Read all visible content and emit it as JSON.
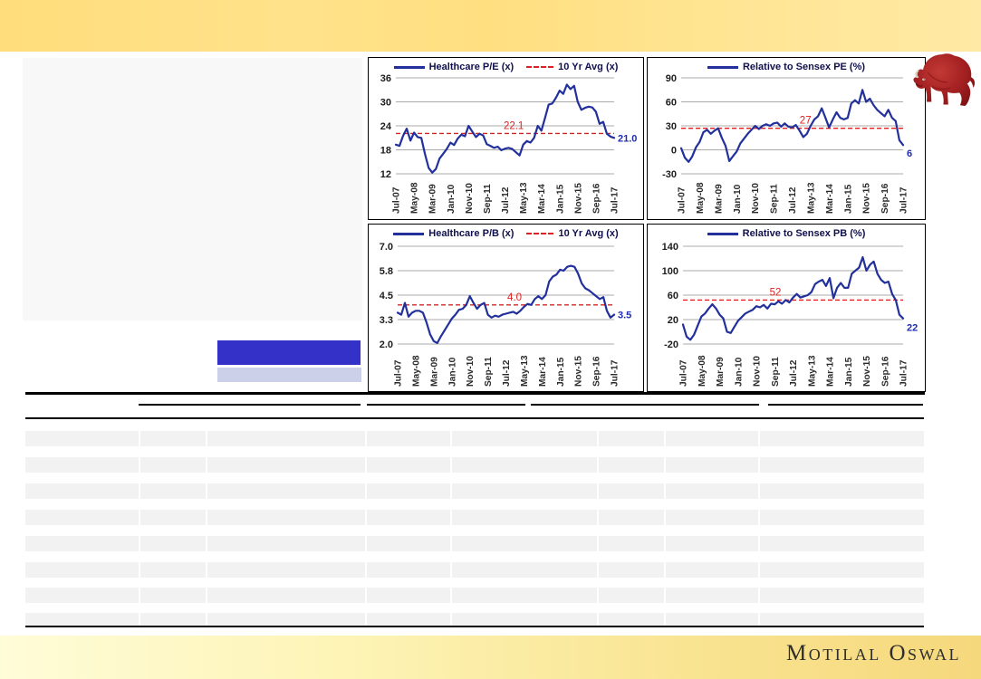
{
  "footer": {
    "brand": "Motilal Oswal"
  },
  "logo": {
    "name": "motilal-oswal-bull-logo",
    "color": "#9c1a1c"
  },
  "colors": {
    "series_line": "#22309c",
    "avg_line": "#e02020",
    "grid": "#ababab",
    "tick_text": "#1c1c1c",
    "end_label": "#1f2db4",
    "legend_text": "#10104e",
    "top_band": [
      "#ffdd7c",
      "#ffe9a4"
    ],
    "footer_band": [
      "#fffcd8",
      "#f6d87c"
    ],
    "blue_bar": "#3431c8",
    "lavender_bar": "#ccd0e9",
    "row_stripe": "#f2f2f2",
    "left_panel": "#f8f8f8"
  },
  "table": {
    "rows": 8,
    "columns": 8,
    "cell_text": ""
  },
  "chart_data": [
    {
      "type": "line",
      "title": "Healthcare P/E (x)",
      "legend": [
        {
          "label": "Healthcare P/E (x)",
          "style": "solid"
        },
        {
          "label": "10 Yr Avg (x)",
          "style": "dashed"
        }
      ],
      "ylim": [
        12,
        36
      ],
      "yticks": [
        "36",
        "30",
        "24",
        "18",
        "12"
      ],
      "xticklabels": [
        "Jul-07",
        "May-08",
        "Mar-09",
        "Jan-10",
        "Nov-10",
        "Sep-11",
        "Jul-12",
        "May-13",
        "Mar-14",
        "Jan-15",
        "Nov-15",
        "Sep-16",
        "Jul-17"
      ],
      "avg_value": 22.1,
      "avg_label": "22.1",
      "last_label": "21.0",
      "values": [
        19.3,
        19.0,
        21.5,
        23.3,
        20.3,
        22.3,
        21.2,
        21.0,
        17.0,
        13.5,
        12.3,
        13.2,
        15.8,
        17.0,
        18.2,
        19.8,
        19.2,
        20.8,
        21.8,
        21.4,
        24.0,
        22.6,
        21.2,
        22.0,
        21.6,
        19.4,
        19.0,
        18.5,
        18.8,
        17.9,
        18.3,
        18.5,
        18.2,
        17.4,
        16.6,
        19.3,
        20.2,
        19.8,
        21.0,
        24.0,
        22.8,
        26.0,
        29.3,
        29.6,
        31.0,
        32.8,
        32.0,
        34.3,
        33.2,
        34.0,
        30.0,
        28.0,
        28.5,
        28.8,
        28.6,
        27.5,
        24.5,
        25.0,
        22.0,
        21.3,
        21.0
      ]
    },
    {
      "type": "line",
      "title": "Relative to Sensex PE (%)",
      "legend": [
        {
          "label": "Relative to Sensex PE (%)",
          "style": "solid"
        }
      ],
      "ylim": [
        -30,
        90
      ],
      "yticks": [
        "90",
        "60",
        "30",
        "0",
        "-30"
      ],
      "xticklabels": [
        "Jul-07",
        "May-08",
        "Mar-09",
        "Jan-10",
        "Nov-10",
        "Sep-11",
        "Jul-12",
        "May-13",
        "Mar-14",
        "Jan-15",
        "Nov-15",
        "Sep-16",
        "Jul-17"
      ],
      "avg_value": 27,
      "avg_label": "27",
      "last_label": "6",
      "values": [
        2,
        -10,
        -15,
        -8,
        3,
        10,
        22,
        25,
        20,
        24,
        27,
        15,
        5,
        -14,
        -8,
        -2,
        8,
        14,
        20,
        25,
        30,
        26,
        30,
        32,
        30,
        33,
        34,
        29,
        33,
        29,
        28,
        31,
        24,
        16,
        20,
        30,
        38,
        42,
        52,
        40,
        28,
        38,
        47,
        40,
        38,
        40,
        58,
        62,
        58,
        75,
        60,
        64,
        56,
        50,
        46,
        42,
        50,
        40,
        36,
        12,
        6
      ]
    },
    {
      "type": "line",
      "title": "Healthcare P/B (x)",
      "legend": [
        {
          "label": "Healthcare P/B (x)",
          "style": "solid"
        },
        {
          "label": "10 Yr Avg (x)",
          "style": "dashed"
        }
      ],
      "ylim": [
        2.0,
        7.0
      ],
      "yticks": [
        "7.0",
        "5.8",
        "4.5",
        "3.3",
        "2.0"
      ],
      "xticklabels": [
        "Jul-07",
        "May-08",
        "Mar-09",
        "Jan-10",
        "Nov-10",
        "Sep-11",
        "Jul-12",
        "May-13",
        "Mar-14",
        "Jan-15",
        "Nov-15",
        "Sep-16",
        "Jul-17"
      ],
      "avg_value": 4.0,
      "avg_label": "4.0",
      "last_label": "3.5",
      "values": [
        3.6,
        3.5,
        4.1,
        3.4,
        3.6,
        3.7,
        3.7,
        3.6,
        3.1,
        2.5,
        2.15,
        2.05,
        2.4,
        2.7,
        3.0,
        3.3,
        3.5,
        3.75,
        3.8,
        4.0,
        4.45,
        4.1,
        3.8,
        4.0,
        4.1,
        3.5,
        3.35,
        3.45,
        3.4,
        3.5,
        3.55,
        3.6,
        3.65,
        3.55,
        3.7,
        3.9,
        4.05,
        4.0,
        4.3,
        4.45,
        4.3,
        4.5,
        5.2,
        5.45,
        5.55,
        5.8,
        5.75,
        5.95,
        6.0,
        5.95,
        5.6,
        5.1,
        4.85,
        4.75,
        4.6,
        4.45,
        4.3,
        4.4,
        3.7,
        3.35,
        3.5
      ]
    },
    {
      "type": "line",
      "title": "Relative to Sensex PB (%)",
      "legend": [
        {
          "label": "Relative to Sensex PB (%)",
          "style": "solid"
        }
      ],
      "ylim": [
        -20,
        140
      ],
      "yticks": [
        "140",
        "100",
        "60",
        "20",
        "-20"
      ],
      "xticklabels": [
        "Jul-07",
        "May-08",
        "Mar-09",
        "Jan-10",
        "Nov-10",
        "Sep-11",
        "Jul-12",
        "May-13",
        "Mar-14",
        "Jan-15",
        "Nov-15",
        "Sep-16",
        "Jul-17"
      ],
      "avg_value": 52,
      "avg_label": "52",
      "last_label": "22",
      "values": [
        12,
        -8,
        -13,
        -5,
        10,
        25,
        30,
        38,
        45,
        38,
        28,
        22,
        0,
        -2,
        8,
        18,
        24,
        30,
        33,
        36,
        42,
        40,
        44,
        38,
        46,
        45,
        50,
        46,
        52,
        48,
        56,
        62,
        56,
        58,
        60,
        65,
        78,
        82,
        85,
        75,
        88,
        55,
        72,
        80,
        72,
        72,
        95,
        100,
        105,
        122,
        100,
        110,
        115,
        95,
        85,
        80,
        82,
        62,
        52,
        28,
        22
      ]
    }
  ]
}
